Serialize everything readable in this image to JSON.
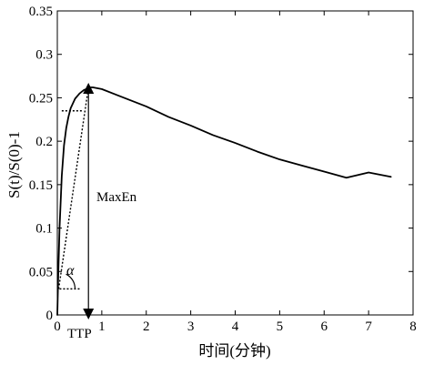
{
  "chart_data": {
    "type": "line",
    "title": "",
    "xlabel": "时间(分钟)",
    "ylabel": "S(t)/S(0)-1",
    "xlim": [
      0,
      8
    ],
    "ylim": [
      0,
      0.35
    ],
    "xticks": [
      0,
      1,
      2,
      3,
      4,
      5,
      6,
      7,
      8
    ],
    "xtick_labels": [
      "0",
      "1",
      "2",
      "3",
      "4",
      "5",
      "6",
      "7",
      "8"
    ],
    "yticks": [
      0,
      0.05,
      0.1,
      0.15,
      0.2,
      0.25,
      0.3,
      0.35
    ],
    "ytick_labels": [
      "0",
      "0.05",
      "0.1",
      "0.15",
      "0.2",
      "0.25",
      "0.3",
      "0.35"
    ],
    "grid": false,
    "series": [
      {
        "x": [
          0,
          0.02,
          0.05,
          0.1,
          0.15,
          0.2,
          0.25,
          0.3,
          0.4,
          0.5,
          0.6,
          0.7,
          0.75,
          0.8,
          1.0,
          1.5,
          2.0,
          2.5,
          3.0,
          3.5,
          4.0,
          4.5,
          5.0,
          5.5,
          6.0,
          6.5,
          7.0,
          7.5
        ],
        "y": [
          0.0,
          0.045,
          0.1,
          0.16,
          0.195,
          0.215,
          0.228,
          0.238,
          0.249,
          0.255,
          0.259,
          0.261,
          0.262,
          0.262,
          0.26,
          0.25,
          0.24,
          0.228,
          0.218,
          0.207,
          0.198,
          0.188,
          0.179,
          0.172,
          0.165,
          0.158,
          0.164,
          0.159
        ],
        "color": "#000000",
        "style": "solid"
      }
    ],
    "annotations": [
      {
        "id": "maxen",
        "text": "MaxEn",
        "x": 0.9,
        "y": 0.138
      },
      {
        "id": "ttp",
        "text": "TTP",
        "x": 0.55,
        "y": -0.022
      },
      {
        "id": "alpha",
        "text": "α",
        "x": 0.3,
        "y": 0.05
      }
    ],
    "guides": {
      "peak": {
        "x": 0.7,
        "y": 0.262
      },
      "upper_dotted_y": 0.235,
      "upper_dotted_x": [
        0.1,
        0.55
      ],
      "lower_dotted_y": 0.03,
      "lower_dotted_x": [
        0.05,
        0.5
      ],
      "tangent": {
        "from": [
          0.03,
          0.03
        ],
        "to": [
          0.7,
          0.262
        ]
      },
      "maxen_arrow": {
        "x": 0.7,
        "from_y": 0.0,
        "to_y": 0.262
      }
    }
  }
}
